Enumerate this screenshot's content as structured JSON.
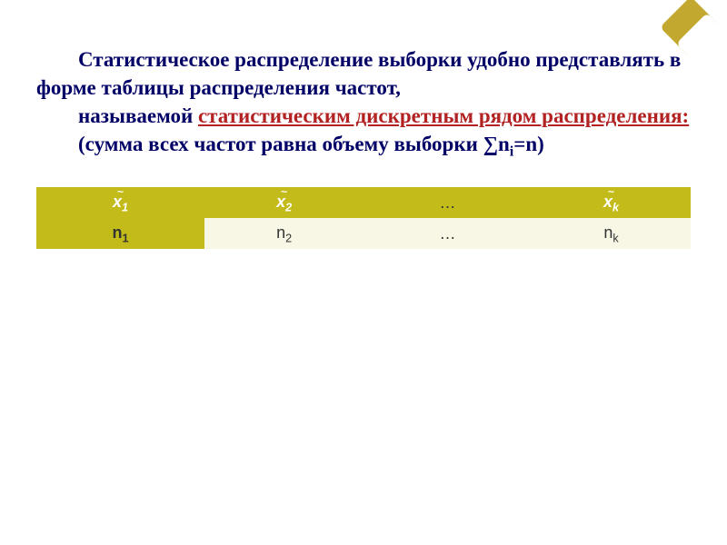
{
  "text": {
    "p1": "Статистическое распределение выборки удобно представлять в форме таблицы распределения частот,",
    "p2_prefix": "называемой ",
    "p2_highlight": "статистическим дискретным рядом распределения: ",
    "p3_a": "(сумма всех частот равна объему выборки ∑n",
    "p3_sub": "i",
    "p3_b": "=n)"
  },
  "table": {
    "header": {
      "c1_var": "x",
      "c1_sub": "1",
      "c2_var": "x",
      "c2_sub": "2",
      "c3": "…",
      "c4_var": "x",
      "c4_sub": "k"
    },
    "row": {
      "c1_var": "n",
      "c1_sub": "1",
      "c2_var": "n",
      "c2_sub": "2",
      "c3": "…",
      "c4_var": "n",
      "c4_sub": "k"
    }
  },
  "style": {
    "text_color": "#000066",
    "highlight_color": "#b22222",
    "table_header_bg": "#c2bb1a",
    "table_header_fg": "#ffffff",
    "table_row_bg": "#f8f7e6",
    "font_size_body": 23,
    "font_size_table": 18
  }
}
